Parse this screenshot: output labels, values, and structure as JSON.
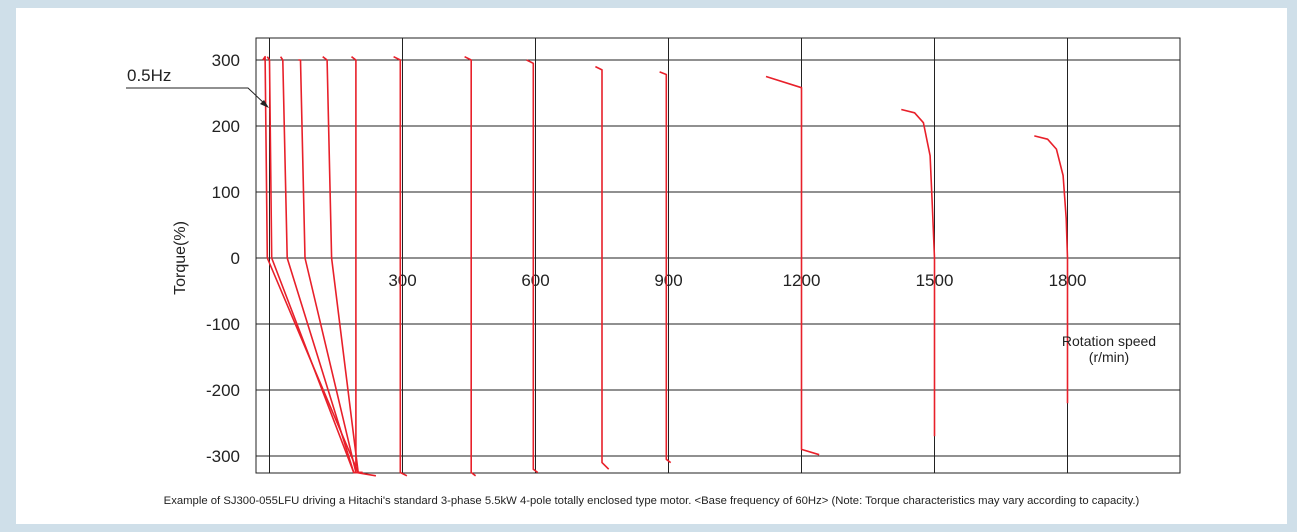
{
  "chart_data": {
    "type": "line",
    "xlabel": "Rotation speed\n(r/min)",
    "ylabel": "Torque(%)",
    "x_ticks": [
      300,
      600,
      900,
      1200,
      1500,
      1800
    ],
    "y_ticks": [
      300,
      200,
      100,
      0,
      -100,
      -200,
      -300
    ],
    "xlim": [
      -30,
      2100
    ],
    "ylim": [
      -315,
      320
    ],
    "grid": true,
    "annotation": "0.5Hz",
    "line_color": "#e8202a",
    "series": [
      {
        "points": [
          [
            -15,
            300
          ],
          [
            -10,
            305
          ],
          [
            -5,
            0
          ],
          [
            -5,
            0
          ],
          [
            200,
            -325
          ],
          [
            210,
            -325
          ]
        ]
      },
      {
        "points": [
          [
            -5,
            305
          ],
          [
            0,
            300
          ],
          [
            5,
            0
          ],
          [
            5,
            0
          ],
          [
            190,
            -325
          ],
          [
            210,
            -325
          ]
        ]
      },
      {
        "points": [
          [
            25,
            305
          ],
          [
            30,
            300
          ],
          [
            40,
            0
          ],
          [
            40,
            0
          ],
          [
            190,
            -325
          ],
          [
            200,
            -325
          ]
        ]
      },
      {
        "points": [
          [
            65,
            300
          ],
          [
            70,
            300
          ],
          [
            80,
            0
          ],
          [
            80,
            0
          ],
          [
            195,
            -325
          ],
          [
            205,
            -325
          ]
        ]
      },
      {
        "points": [
          [
            120,
            305
          ],
          [
            130,
            300
          ],
          [
            140,
            0
          ],
          [
            140,
            0
          ],
          [
            200,
            -325
          ],
          [
            210,
            -325
          ]
        ]
      },
      {
        "points": [
          [
            185,
            305
          ],
          [
            195,
            300
          ],
          [
            195,
            -325
          ],
          [
            240,
            -330
          ]
        ]
      },
      {
        "points": [
          [
            280,
            305
          ],
          [
            295,
            300
          ],
          [
            295,
            -325
          ],
          [
            310,
            -330
          ]
        ]
      },
      {
        "points": [
          [
            440,
            305
          ],
          [
            455,
            300
          ],
          [
            455,
            -325
          ],
          [
            465,
            -330
          ]
        ]
      },
      {
        "points": [
          [
            580,
            300
          ],
          [
            595,
            295
          ],
          [
            595,
            -320
          ],
          [
            605,
            -325
          ]
        ]
      },
      {
        "points": [
          [
            735,
            290
          ],
          [
            750,
            285
          ],
          [
            750,
            -310
          ],
          [
            765,
            -320
          ]
        ]
      },
      {
        "points": [
          [
            880,
            282
          ],
          [
            895,
            278
          ],
          [
            895,
            -305
          ],
          [
            905,
            -310
          ]
        ]
      },
      {
        "points": [
          [
            1120,
            275
          ],
          [
            1200,
            258
          ],
          [
            1200,
            -290
          ],
          [
            1240,
            -298
          ]
        ]
      },
      {
        "points": [
          [
            1425,
            225
          ],
          [
            1455,
            220
          ],
          [
            1475,
            205
          ],
          [
            1490,
            155
          ],
          [
            1495,
            80
          ],
          [
            1500,
            0
          ],
          [
            1500,
            -270
          ]
        ]
      },
      {
        "points": [
          [
            1725,
            185
          ],
          [
            1755,
            180
          ],
          [
            1775,
            165
          ],
          [
            1790,
            125
          ],
          [
            1797,
            60
          ],
          [
            1800,
            0
          ],
          [
            1800,
            -220
          ]
        ]
      }
    ]
  },
  "caption": "Example of SJ300-055LFU driving a Hitachi's standard 3-phase 5.5kW 4-pole totally enclosed type motor. <Base frequency of 60Hz> (Note: Torque characteristics may vary according to capacity.)"
}
